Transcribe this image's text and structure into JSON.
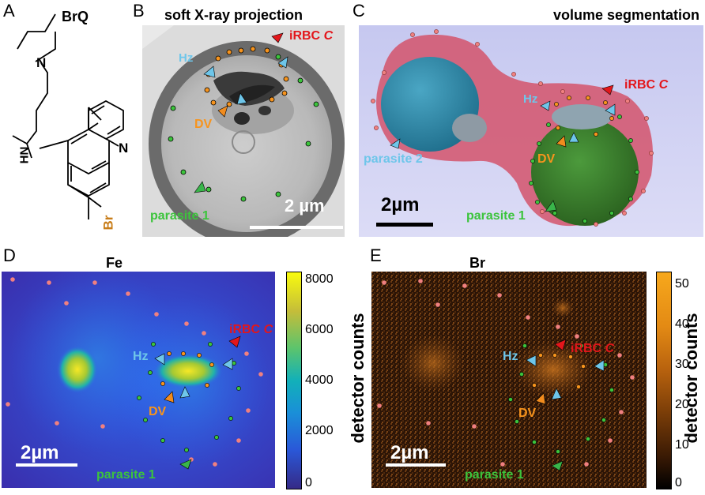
{
  "panel_letters": {
    "a": "A",
    "b": "B",
    "c": "C",
    "d": "D",
    "e": "E"
  },
  "panel_a": {
    "title": "BrQ",
    "atom_n1": "N",
    "atom_hn": "HN",
    "atom_n2": "N",
    "atom_br": "Br"
  },
  "panel_b": {
    "title": "soft X-ray projection",
    "label_irbc": "iRBC",
    "label_irbc_italic": "C",
    "label_hz": "Hz",
    "label_dv": "DV",
    "label_parasite1": "parasite 1",
    "scalebar": "2 µm"
  },
  "panel_c": {
    "title": "volume segmentation",
    "label_irbc": "iRBC",
    "label_irbc_italic": "C",
    "label_hz": "Hz",
    "label_dv": "DV",
    "label_parasite1": "parasite 1",
    "label_parasite2": "parasite 2",
    "scalebar": "2µm"
  },
  "panel_d": {
    "title": "Fe",
    "label_irbc": "iRBC",
    "label_irbc_italic": "C",
    "label_hz": "Hz",
    "label_dv": "DV",
    "label_parasite1": "parasite 1",
    "scalebar": "2µm",
    "colorbar_label": "detector counts",
    "colorbar_ticks": [
      "8000",
      "6000",
      "4000",
      "2000",
      "0"
    ],
    "colormap": "parula"
  },
  "panel_e": {
    "title": "Br",
    "label_irbc": "iRBC",
    "label_irbc_italic": "C",
    "label_hz": "Hz",
    "label_dv": "DV",
    "label_parasite1": "parasite 1",
    "scalebar": "2µm",
    "colorbar_label": "detector counts",
    "colorbar_ticks": [
      "50",
      "40",
      "30",
      "20",
      "10",
      "0"
    ],
    "colormap": "copper-orange"
  },
  "colors": {
    "hz_arrow": "#6ec6ea",
    "dv_arrow": "#f28c1e",
    "irbc_arrow": "#e3161b",
    "parasite_arrow": "#39b54a",
    "parasite_dot": "#3cc43c",
    "dv_dot": "#f7941d",
    "irbc_dot": "#f08080",
    "hz_text": "#6ec6ea",
    "dv_text": "#f7941d",
    "irbc_text": "#e3161b",
    "parasite_text": "#3cc43c",
    "br_atom": "#c87d19"
  }
}
